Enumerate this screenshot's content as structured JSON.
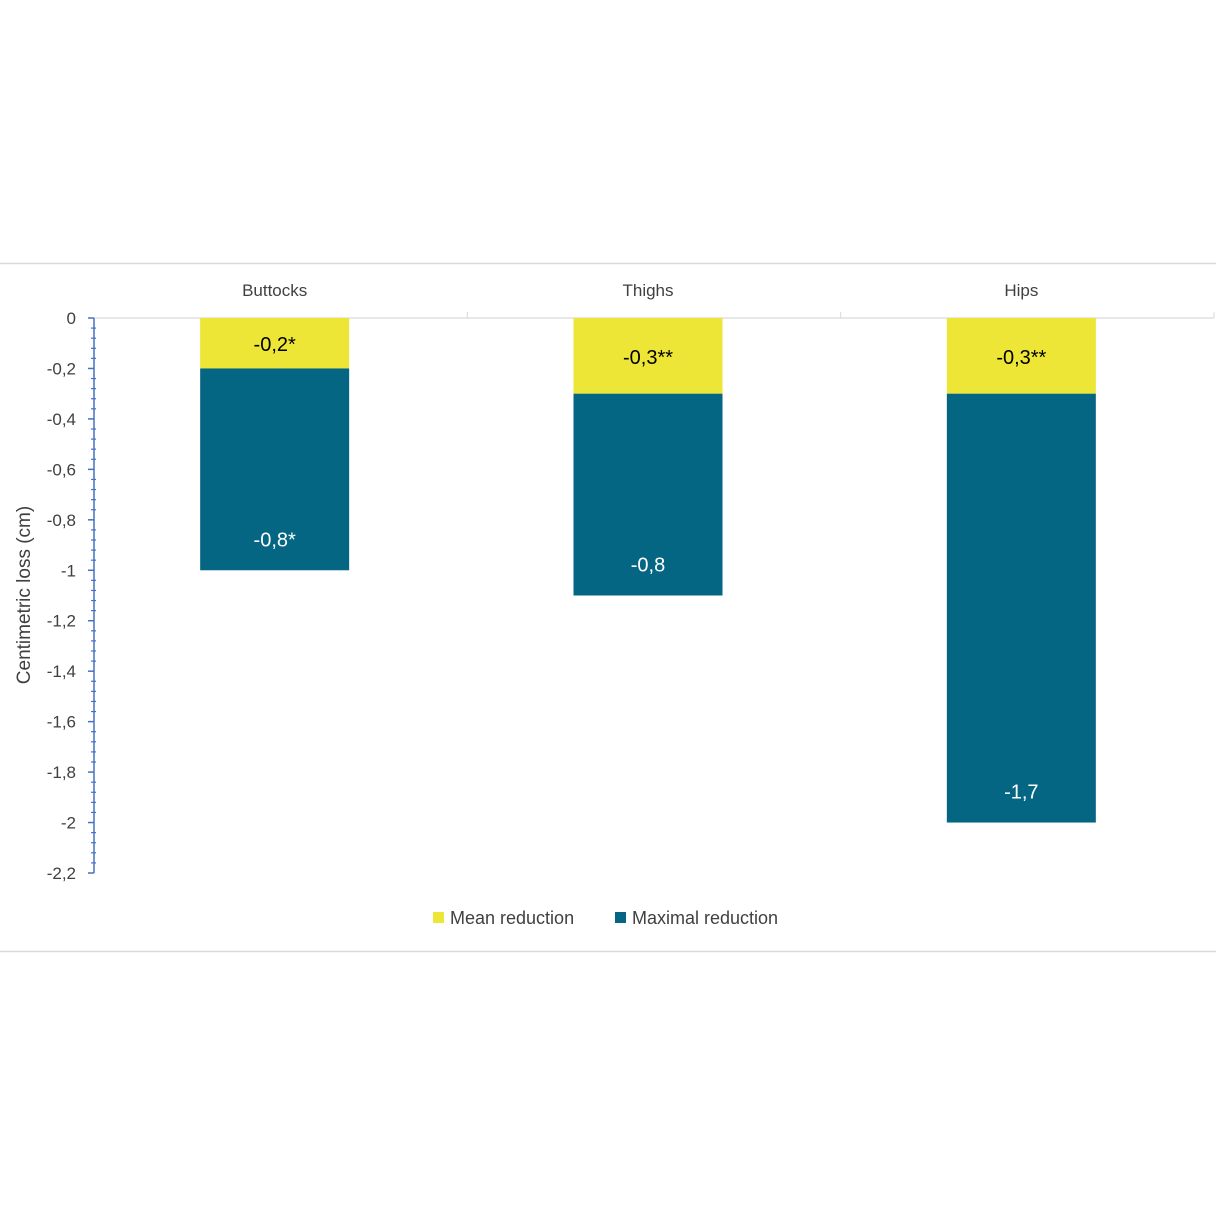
{
  "chart_data": {
    "type": "bar",
    "stacked": true,
    "title": "",
    "xlabel": "",
    "ylabel": "Centimetric loss (cm)",
    "ylim": [
      -2.2,
      0
    ],
    "y_ticks": [
      "0",
      "-0,2",
      "-0,4",
      "-0,6",
      "-0,8",
      "-1",
      "-1,2",
      "-1,4",
      "-1,6",
      "-1,8",
      "-2",
      "-2,2"
    ],
    "y_tick_values": [
      0,
      -0.2,
      -0.4,
      -0.6,
      -0.8,
      -1,
      -1.2,
      -1.4,
      -1.6,
      -1.8,
      -2,
      -2.2
    ],
    "categories": [
      "Buttocks",
      "Thighs",
      "Hips"
    ],
    "series": [
      {
        "name": "Mean reduction",
        "color": "#EEE637",
        "values": [
          -0.2,
          -0.3,
          -0.3
        ],
        "labels": [
          "-0,2*",
          "-0,3**",
          "-0,3**"
        ],
        "label_color": "#000000"
      },
      {
        "name": "Maximal reduction",
        "color": "#046683",
        "values": [
          -0.8,
          -0.8,
          -1.7
        ],
        "labels": [
          "-0,8*",
          "-0,8",
          "-1,7"
        ],
        "label_color": "#ffffff"
      }
    ],
    "legend_position": "bottom",
    "grid": false
  }
}
